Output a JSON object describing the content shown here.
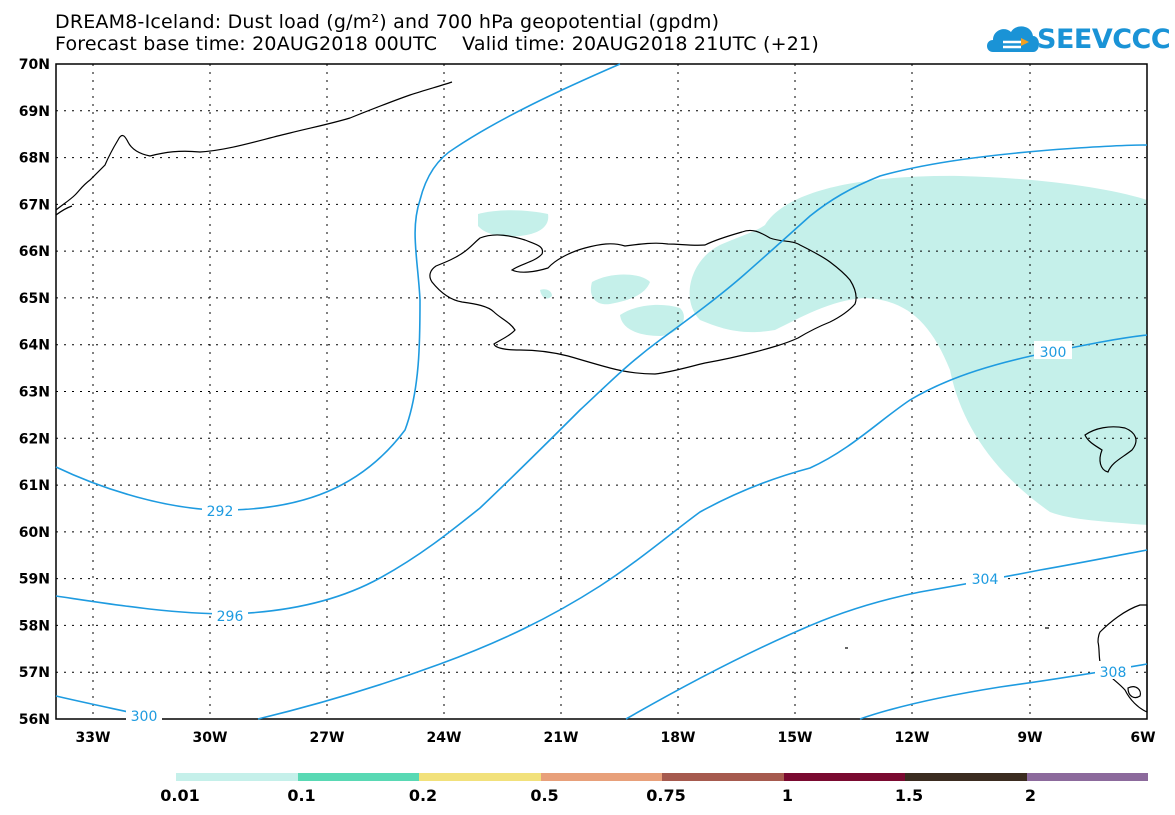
{
  "header": {
    "title_line1": "DREAM8-Iceland: Dust load (g/m²) and 700 hPa geopotential (gpdm)",
    "title_line2": "Forecast base time: 20AUG2018 00UTC    Valid time: 20AUG2018 21UTC (+21)"
  },
  "logo": {
    "text": "SEEVCCC",
    "icon": "cloud-logo-icon",
    "color": "#1a93d6"
  },
  "map": {
    "lat_labels": [
      "70N",
      "69N",
      "68N",
      "67N",
      "66N",
      "65N",
      "64N",
      "63N",
      "62N",
      "61N",
      "60N",
      "59N",
      "58N",
      "57N",
      "56N"
    ],
    "lon_labels": [
      "33W",
      "30W",
      "27W",
      "24W",
      "21W",
      "18W",
      "15W",
      "12W",
      "9W",
      "6W"
    ],
    "contour_labels": [
      "292",
      "296",
      "300",
      "300",
      "304",
      "308"
    ],
    "contour_color": "#1e9be0",
    "dust_color": "#c5f0ea"
  },
  "colorbar": {
    "colors": [
      "#c5f0ea",
      "#59d9b4",
      "#f2e17b",
      "#e8a07a",
      "#a65a4e",
      "#7a0a30",
      "#3b2c20",
      "#8c6a9c"
    ],
    "labels": [
      "0.01",
      "0.1",
      "0.2",
      "0.5",
      "0.75",
      "1",
      "1.5",
      "2"
    ]
  }
}
